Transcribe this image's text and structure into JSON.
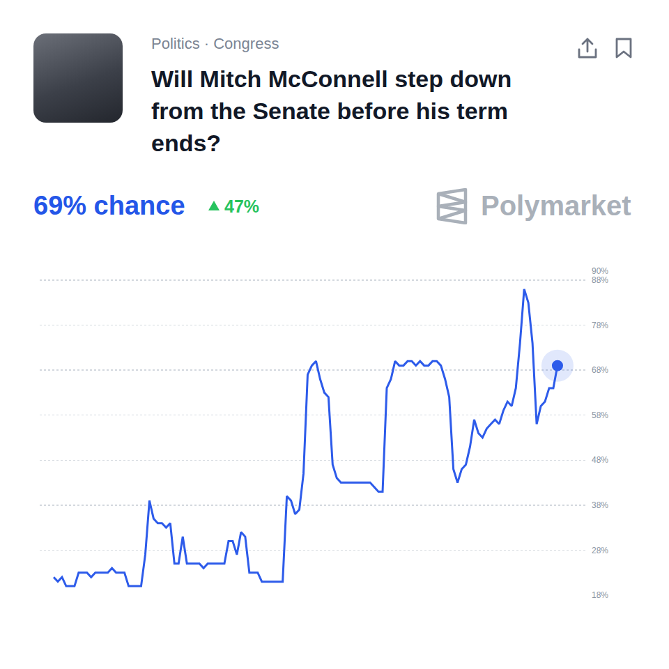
{
  "chart_data": {
    "type": "line",
    "subtitle": "Politics · Congress",
    "title": "Will Mitch McConnell step down from the Senate before his term ends?",
    "annotations": [
      "69% chance",
      "47%",
      "Polymarket"
    ],
    "categories": [
      null,
      null,
      null,
      null,
      null,
      null,
      null,
      null,
      null,
      null,
      null,
      null,
      null,
      null,
      null,
      null,
      null,
      null,
      null,
      null,
      null,
      null,
      null,
      null,
      null,
      null,
      null,
      null,
      null,
      null,
      null,
      null,
      null,
      null,
      null,
      null,
      null,
      null,
      null,
      null,
      null,
      null,
      null,
      null,
      null,
      null,
      null,
      null,
      null,
      null,
      null,
      null,
      null,
      null,
      null,
      null,
      null,
      null,
      null,
      null,
      null,
      null,
      null,
      null,
      null,
      null,
      null,
      null,
      null,
      null,
      null,
      null,
      null,
      null,
      null,
      null,
      null,
      null,
      null,
      null,
      null,
      null,
      null,
      null,
      null,
      null,
      null,
      null,
      null,
      null,
      null,
      null,
      null,
      null,
      null,
      null,
      null,
      null,
      null,
      null,
      null,
      null,
      null,
      null,
      null,
      null,
      null,
      null,
      null,
      null,
      null,
      null,
      null,
      null,
      null,
      null,
      null,
      null,
      null,
      null,
      null,
      null
    ],
    "values": [
      22,
      21,
      22,
      20,
      20,
      20,
      23,
      23,
      23,
      22,
      23,
      23,
      23,
      23,
      24,
      23,
      23,
      23,
      20,
      20,
      20,
      20,
      27,
      39,
      35,
      34,
      34,
      33,
      34,
      25,
      25,
      31,
      25,
      25,
      25,
      25,
      24,
      25,
      25,
      25,
      25,
      25,
      30,
      30,
      27,
      32,
      31,
      23,
      23,
      23,
      21,
      21,
      21,
      21,
      21,
      21,
      40,
      39,
      36,
      37,
      45,
      67,
      69,
      70,
      66,
      63,
      62,
      47,
      44,
      43,
      43,
      43,
      43,
      43,
      43,
      43,
      43,
      42,
      41,
      41,
      64,
      66,
      70,
      69,
      69,
      70,
      70,
      69,
      70,
      69,
      69,
      70,
      70,
      69,
      66,
      62,
      46,
      43,
      46,
      47,
      51,
      57,
      54,
      53,
      55,
      56,
      57,
      56,
      59,
      61,
      60,
      64,
      74,
      86,
      83,
      74,
      56,
      60,
      61,
      64,
      64,
      69
    ],
    "color": "#2d5bea",
    "ylim": [
      18,
      90
    ],
    "yticks": [
      {
        "value": 18,
        "label": "18%"
      },
      {
        "value": 28,
        "label": "28%"
      },
      {
        "value": 38,
        "label": "38%"
      },
      {
        "value": 48,
        "label": "48%"
      },
      {
        "value": 58,
        "label": "58%"
      },
      {
        "value": 68,
        "label": "68%"
      },
      {
        "value": 78,
        "label": "78%"
      },
      {
        "value": 88,
        "label": "88%"
      },
      {
        "value": 90,
        "label": "90%"
      }
    ],
    "grid": true,
    "tick_labels": "y"
  }
}
